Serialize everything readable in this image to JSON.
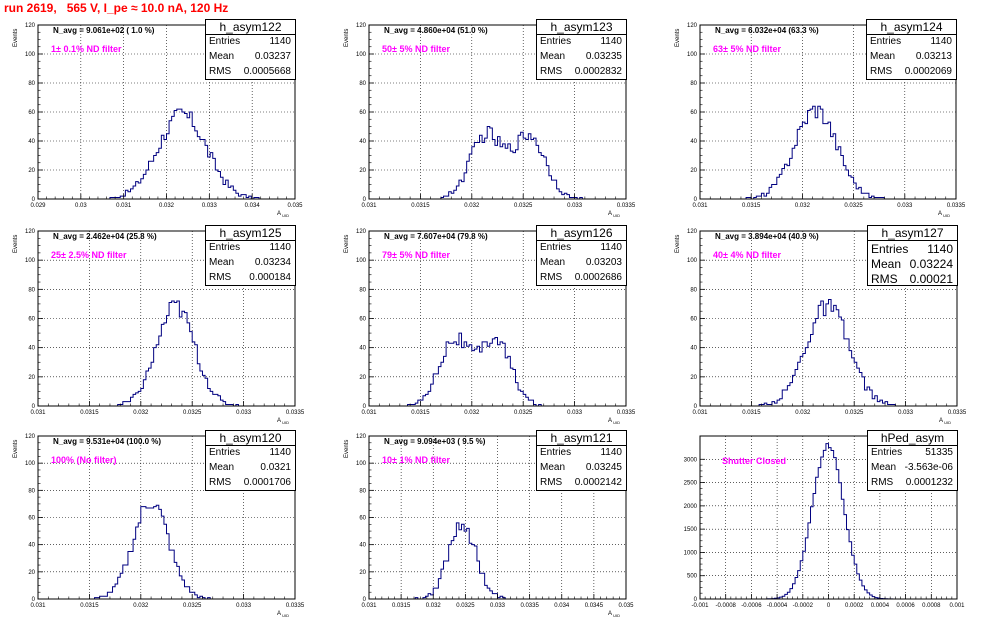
{
  "page_title": "run 2619,   565 V, I_pe ≈ 10.0 nA, 120 Hz",
  "colors": {
    "title": "#ff0000",
    "filter_label": "#ff00ff",
    "histogram": "#000080",
    "grid": "#000000"
  },
  "chart_data": [
    {
      "type": "histogram",
      "name": "h_asym122",
      "stats": {
        "entries_label": "Entries",
        "entries": "1140",
        "mean_label": "Mean",
        "mean": "0.03237",
        "rms_label": "RMS",
        "rms": "0.0005668"
      },
      "annotation": "N_avg = 9.061e+02 ( 1.0 %)",
      "filter_label": "1± 0.1% ND filter",
      "ylabel": "Events",
      "xlabel": "A",
      "xlabel_sub": "UID",
      "xlim": [
        0.029,
        0.035
      ],
      "ylim": [
        0,
        120
      ],
      "xticks": [
        "0.029",
        "0.03",
        "0.031",
        "0.032",
        "0.033",
        "0.034",
        "0.035"
      ],
      "yticks": [
        "0",
        "20",
        "40",
        "60",
        "80",
        "100",
        "120"
      ],
      "grid": true,
      "mean_value": 0.03237,
      "rms_value": 0.0005668,
      "peak": 58
    },
    {
      "type": "histogram",
      "name": "h_asym123",
      "stats": {
        "entries_label": "Entries",
        "entries": "1140",
        "mean_label": "Mean",
        "mean": "0.03235",
        "rms_label": "RMS",
        "rms": "0.0002832"
      },
      "annotation": "N_avg = 4.860e+04 (51.0 %)",
      "filter_label": "50± 5% ND filter",
      "ylabel": "Events",
      "xlabel": "A",
      "xlabel_sub": "UID",
      "xlim": [
        0.031,
        0.0335
      ],
      "ylim": [
        0,
        120
      ],
      "xticks": [
        "0.031",
        "0.0315",
        "0.032",
        "0.0325",
        "0.033",
        "0.0335"
      ],
      "yticks": [
        "0",
        "20",
        "40",
        "60",
        "80",
        "100",
        "120"
      ],
      "grid": true,
      "mean_value": 0.03235,
      "rms_value": 0.0002832,
      "peak": 48,
      "bimodal": true
    },
    {
      "type": "histogram",
      "name": "h_asym124",
      "stats": {
        "entries_label": "Entries",
        "entries": "1140",
        "mean_label": "Mean",
        "mean": "0.03213",
        "rms_label": "RMS",
        "rms": "0.0002069"
      },
      "annotation": "N_avg = 6.032e+04 (63.3 %)",
      "filter_label": "63± 5% ND filter",
      "ylabel": "Events",
      "xlabel": "A",
      "xlabel_sub": "UID",
      "xlim": [
        0.031,
        0.0335
      ],
      "ylim": [
        0,
        120
      ],
      "xticks": [
        "0.031",
        "0.0315",
        "0.032",
        "0.0325",
        "0.033",
        "0.0335"
      ],
      "yticks": [
        "0",
        "20",
        "40",
        "60",
        "80",
        "100",
        "120"
      ],
      "grid": true,
      "mean_value": 0.03213,
      "rms_value": 0.0002069,
      "peak": 62
    },
    {
      "type": "histogram",
      "name": "h_asym125",
      "stats": {
        "entries_label": "Entries",
        "entries": "1140",
        "mean_label": "Mean",
        "mean": "0.03234",
        "rms_label": "RMS",
        "rms": "0.000184"
      },
      "annotation": "N_avg = 2.462e+04 (25.8 %)",
      "filter_label": "25± 2.5% ND filter",
      "ylabel": "Events",
      "xlabel": "A",
      "xlabel_sub": "UID",
      "xlim": [
        0.031,
        0.0335
      ],
      "ylim": [
        0,
        120
      ],
      "xticks": [
        "0.031",
        "0.0315",
        "0.032",
        "0.0325",
        "0.033",
        "0.0335"
      ],
      "yticks": [
        "0",
        "20",
        "40",
        "60",
        "80",
        "100",
        "120"
      ],
      "grid": true,
      "mean_value": 0.03234,
      "rms_value": 0.000184,
      "peak": 68
    },
    {
      "type": "histogram",
      "name": "h_asym126",
      "stats": {
        "entries_label": "Entries",
        "entries": "1140",
        "mean_label": "Mean",
        "mean": "0.03203",
        "rms_label": "RMS",
        "rms": "0.0002686"
      },
      "annotation": "N_avg = 7.607e+04 (79.8 %)",
      "filter_label": "79± 5% ND filter",
      "ylabel": "Events",
      "xlabel": "A",
      "xlabel_sub": "UID",
      "xlim": [
        0.031,
        0.0335
      ],
      "ylim": [
        0,
        120
      ],
      "xticks": [
        "0.031",
        "0.0315",
        "0.032",
        "0.0325",
        "0.033",
        "0.0335"
      ],
      "yticks": [
        "0",
        "20",
        "40",
        "60",
        "80",
        "100",
        "120"
      ],
      "grid": true,
      "mean_value": 0.03203,
      "rms_value": 0.0002686,
      "peak": 50,
      "bimodal": true
    },
    {
      "type": "histogram",
      "name": "h_asym127",
      "stats": {
        "entries_label": "Entries",
        "entries": "1140",
        "mean_label": "Mean",
        "mean": "0.03224",
        "rms_label": "RMS",
        "rms": "0.00021"
      },
      "annotation": "N_avg = 3.894e+04 (40.9 %)",
      "filter_label": "40± 4% ND filter",
      "ylabel": "Events",
      "xlabel": "A",
      "xlabel_sub": "UID",
      "xlim": [
        0.031,
        0.0335
      ],
      "ylim": [
        0,
        120
      ],
      "xticks": [
        "0.031",
        "0.0315",
        "0.032",
        "0.0325",
        "0.033",
        "0.0335"
      ],
      "yticks": [
        "0",
        "20",
        "40",
        "60",
        "80",
        "100",
        "120"
      ],
      "grid": true,
      "mean_value": 0.03224,
      "rms_value": 0.00021,
      "peak": 68
    },
    {
      "type": "histogram",
      "name": "h_asym120",
      "stats": {
        "entries_label": "Entries",
        "entries": "1140",
        "mean_label": "Mean",
        "mean": "0.0321",
        "rms_label": "RMS",
        "rms": "0.0001706"
      },
      "annotation": "N_avg = 9.531e+04 (100.0 %)",
      "filter_label": "100% (No filter)",
      "ylabel": "Events",
      "xlabel": "A",
      "xlabel_sub": "UID",
      "xlim": [
        0.031,
        0.0335
      ],
      "ylim": [
        0,
        120
      ],
      "xticks": [
        "0.031",
        "0.0315",
        "0.032",
        "0.0325",
        "0.033",
        "0.0335"
      ],
      "yticks": [
        "0",
        "20",
        "40",
        "60",
        "80",
        "100",
        "120"
      ],
      "grid": true,
      "mean_value": 0.0321,
      "rms_value": 0.0001706,
      "peak": 72
    },
    {
      "type": "histogram",
      "name": "h_asym121",
      "stats": {
        "entries_label": "Entries",
        "entries": "1140",
        "mean_label": "Mean",
        "mean": "0.03245",
        "rms_label": "RMS",
        "rms": "0.0002142"
      },
      "annotation": "N_avg = 9.094e+03 ( 9.5 %)",
      "filter_label": "10± 1% ND filter",
      "ylabel": "Events",
      "xlabel": "A",
      "xlabel_sub": "UID",
      "xlim": [
        0.031,
        0.035
      ],
      "ylim": [
        0,
        120
      ],
      "xticks": [
        "0.031",
        "0.0315",
        "0.032",
        "0.0325",
        "0.033",
        "0.0335",
        "0.034",
        "0.0345",
        "0.035"
      ],
      "yticks": [
        "0",
        "20",
        "40",
        "60",
        "80",
        "100",
        "120"
      ],
      "grid": true,
      "mean_value": 0.03245,
      "rms_value": 0.0002142,
      "peak": 56
    },
    {
      "type": "histogram",
      "name": "hPed_asym",
      "stats": {
        "entries_label": "Entries",
        "entries": "51335",
        "mean_label": "Mean",
        "mean": "-3.563e-06",
        "rms_label": "RMS",
        "rms": "0.0001232"
      },
      "annotation": "",
      "filter_label": "Shutter Closed",
      "ylabel": "",
      "xlabel": "",
      "xlabel_sub": "",
      "xlim": [
        -0.001,
        0.001
      ],
      "ylim": [
        0,
        3500
      ],
      "xticks": [
        "-0.001",
        "-0.0008",
        "-0.0006",
        "-0.0004",
        "-0.0002",
        "0",
        "0.0002",
        "0.0004",
        "0.0006",
        "0.0008",
        "0.001"
      ],
      "yticks": [
        "0",
        "500",
        "1000",
        "1500",
        "2000",
        "2500",
        "3000"
      ],
      "grid": true,
      "mean_value": -3.563e-06,
      "rms_value": 0.0001232,
      "peak": 3300
    }
  ]
}
